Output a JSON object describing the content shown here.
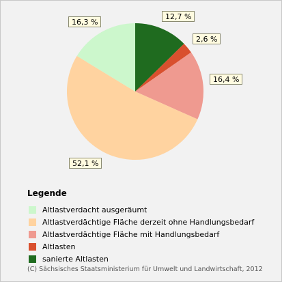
{
  "chart_data": {
    "type": "pie",
    "title": "",
    "legend_title": "Legende",
    "legend_position": "bottom-left",
    "series": [
      {
        "name": "sanierte Altlasten",
        "value": 12.7,
        "label": "12,7 %",
        "color": "#1f6b1f"
      },
      {
        "name": "Altlasten",
        "value": 2.6,
        "label": "2,6 %",
        "color": "#d9502e"
      },
      {
        "name": "Altlastverdächtige Fläche mit Handlungsbedarf",
        "value": 16.4,
        "label": "16,4 %",
        "color": "#ef9a90"
      },
      {
        "name": "Altlastverdächtige Fläche derzeit ohne Handlungsbedarf",
        "value": 52.1,
        "label": "52,1 %",
        "color": "#ffd3a0"
      },
      {
        "name": "Altlastverdacht ausgeräumt",
        "value": 16.3,
        "label": "16,3 %",
        "color": "#ccf7cc"
      }
    ],
    "legend_order": [
      4,
      3,
      2,
      1,
      0
    ]
  },
  "footer": "(C) Sächsisches Staatsministerium für Umwelt und Landwirtschaft, 2012"
}
